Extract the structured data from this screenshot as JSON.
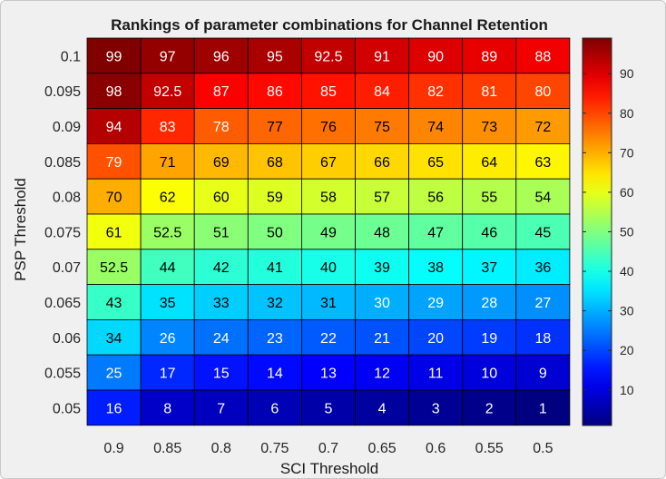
{
  "chart_data": {
    "type": "heatmap",
    "title": "Rankings of parameter combinations for Channel Retention",
    "xlabel": "SCI Threshold",
    "ylabel": "PSP Threshold",
    "x_categories": [
      "0.9",
      "0.85",
      "0.8",
      "0.75",
      "0.7",
      "0.65",
      "0.6",
      "0.55",
      "0.5"
    ],
    "y_categories": [
      "0.1",
      "0.095",
      "0.09",
      "0.085",
      "0.08",
      "0.075",
      "0.07",
      "0.065",
      "0.06",
      "0.055",
      "0.05"
    ],
    "cell_labels": [
      [
        "99",
        "97",
        "96",
        "95",
        "92.5",
        "91",
        "90",
        "89",
        "88"
      ],
      [
        "98",
        "92.5",
        "87",
        "86",
        "85",
        "84",
        "82",
        "81",
        "80"
      ],
      [
        "94",
        "83",
        "78",
        "77",
        "76",
        "75",
        "74",
        "73",
        "72"
      ],
      [
        "79",
        "71",
        "69",
        "68",
        "67",
        "66",
        "65",
        "64",
        "63"
      ],
      [
        "70",
        "62",
        "60",
        "59",
        "58",
        "57",
        "56",
        "55",
        "54"
      ],
      [
        "61",
        "52.5",
        "51",
        "50",
        "49",
        "48",
        "47",
        "46",
        "45"
      ],
      [
        "52.5",
        "44",
        "42",
        "41",
        "40",
        "39",
        "38",
        "37",
        "36"
      ],
      [
        "43",
        "35",
        "33",
        "32",
        "31",
        "30",
        "29",
        "28",
        "27"
      ],
      [
        "34",
        "26",
        "24",
        "23",
        "22",
        "21",
        "20",
        "19",
        "18"
      ],
      [
        "25",
        "17",
        "15",
        "14",
        "13",
        "12",
        "11",
        "10",
        "9"
      ],
      [
        "16",
        "8",
        "7",
        "6",
        "5",
        "4",
        "3",
        "2",
        "1"
      ]
    ],
    "colormap": "jet",
    "color_range": [
      1,
      99
    ],
    "colorbar": {
      "ticks": [
        "10",
        "20",
        "30",
        "40",
        "50",
        "60",
        "70",
        "80",
        "90"
      ],
      "tick_values": [
        10,
        20,
        30,
        40,
        50,
        60,
        70,
        80,
        90
      ],
      "placement": "right"
    },
    "colors": {
      "figure_background": "#f0f0f0",
      "cell_border": "#000000",
      "text_dark": "#000000",
      "text_light": "#ffffff"
    }
  }
}
